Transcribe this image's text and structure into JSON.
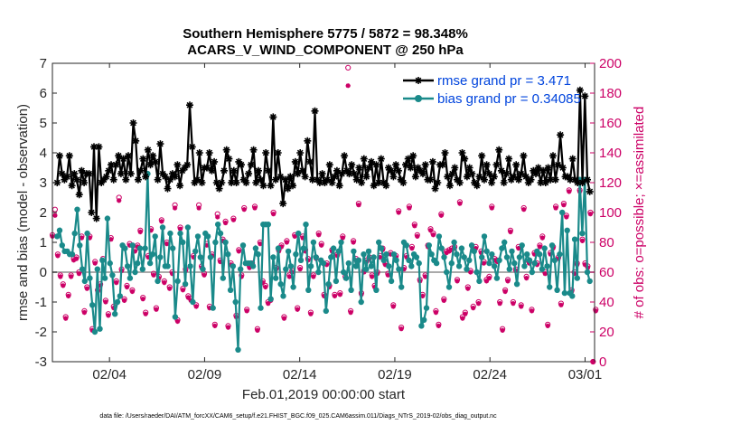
{
  "chart_data": {
    "type": "line",
    "title_line1": "Southern Hemisphere 5775 / 5872 = 98.348%",
    "title_line2": "ACARS_V_WIND_COMPONENT @ 250 hPa",
    "xlabel": "Feb.01,2019 00:00:00 start",
    "ylabel": "rmse and bias (model - observation)",
    "ylabel_right": "# of obs: o=possible; ×=assimilated",
    "footnote": "data file: /Users/raeder/DAI/ATM_forcXX/CAM6_setup/f.e21.FHIST_BGC.f09_025.CAM6assim.011/Diags_NTrS_2019-02/obs_diag_output.nc",
    "xlim": [
      0,
      28.5
    ],
    "ylim": [
      -3,
      7
    ],
    "ylim_right": [
      0,
      200
    ],
    "x_ticks": [
      {
        "value": 3,
        "label": "02/04"
      },
      {
        "value": 8,
        "label": "02/09"
      },
      {
        "value": 13,
        "label": "02/14"
      },
      {
        "value": 18,
        "label": "02/19"
      },
      {
        "value": 23,
        "label": "02/24"
      },
      {
        "value": 28,
        "label": "03/01"
      }
    ],
    "y_ticks": [
      "-3",
      "-2",
      "-1",
      "0",
      "1",
      "2",
      "3",
      "4",
      "5",
      "6",
      "7"
    ],
    "y_ticks_right": [
      "0",
      "20",
      "40",
      "60",
      "80",
      "100",
      "120",
      "140",
      "160",
      "180",
      "200"
    ],
    "step": 0.25,
    "series": [
      {
        "name": "rmse grand pr = 3.471",
        "color": "#000000",
        "marker": "asterisk",
        "values": [
          3.0,
          3.9,
          3.3,
          3.1,
          3.2,
          3.9,
          2.9,
          3.3,
          3.1,
          2.6,
          3.4,
          3.0,
          3.3,
          3.3,
          2.0,
          4.2,
          1.8,
          4.2,
          3.0,
          3.1,
          3.2,
          3.4,
          3.6,
          3.1,
          3.6,
          3.9,
          3.3,
          3.8,
          3.1,
          3.9,
          3.3,
          5.0,
          4.4,
          3.1,
          3.4,
          3.8,
          3.2,
          4.1,
          3.6,
          3.9,
          3.7,
          3.1,
          4.3,
          3.3,
          3.2,
          2.8,
          3.1,
          3.3,
          3.2,
          3.6,
          2.9,
          3.4,
          3.5,
          3.6,
          5.6,
          4.2,
          3.0,
          3.1,
          4.0,
          3.0,
          3.5,
          3.5,
          4.0,
          3.4,
          3.7,
          3.0,
          2.8,
          3.0,
          3.4,
          4.1,
          3.8,
          3.0,
          3.4,
          3.0,
          3.7,
          3.6,
          3.1,
          3.0,
          3.3,
          3.6,
          4.1,
          3.0,
          3.4,
          3.1,
          2.9,
          4.0,
          3.4,
          2.9,
          5.2,
          3.1,
          4.0,
          3.2,
          2.3,
          3.1,
          2.8,
          3.2,
          2.9,
          3.7,
          3.3,
          4.0,
          3.4,
          3.2,
          4.4,
          3.7,
          3.1,
          5.4,
          3.1,
          3.0,
          3.3,
          3.0,
          3.1,
          3.6,
          3.0,
          3.2,
          3.4,
          2.9,
          3.3,
          3.9,
          3.4,
          3.3,
          3.6,
          3.3,
          3.1,
          3.5,
          3.0,
          3.8,
          3.2,
          3.5,
          3.7,
          2.9,
          3.6,
          3.0,
          3.8,
          3.0,
          2.9,
          3.5,
          3.4,
          3.2,
          3.6,
          3.4,
          3.1,
          3.0,
          3.6,
          3.8,
          3.5,
          3.9,
          3.2,
          3.5,
          3.4,
          3.3,
          3.6,
          3.1,
          3.1,
          3.7,
          2.8,
          3.0,
          3.6,
          3.6,
          4.0,
          3.2,
          2.9,
          3.3,
          3.5,
          3.1,
          3.0,
          4.0,
          3.8,
          3.2,
          3.5,
          3.3,
          3.0,
          2.9,
          3.2,
          3.9,
          3.1,
          3.6,
          3.3,
          3.0,
          3.2,
          3.6,
          4.1,
          3.4,
          3.0,
          3.3,
          3.8,
          3.1,
          3.2,
          3.6,
          3.1,
          3.3,
          3.9,
          3.2,
          3.0,
          3.1,
          3.4,
          3.3,
          3.5,
          3.0,
          3.4,
          3.0,
          3.5,
          3.1,
          3.9,
          3.1,
          3.6,
          4.6,
          3.5,
          3.2,
          3.2,
          3.1,
          3.8,
          3.1,
          3.0,
          6.1,
          3.0,
          5.9,
          3.1,
          2.7
        ],
        "legend": "rmse grand pr = 3.471"
      },
      {
        "name": "bias grand pr = 0.34085",
        "color": "#1a8a8a",
        "marker": "circle",
        "values": [
          1.2,
          1.4,
          0.9,
          0.7,
          0.7,
          0.6,
          0.6,
          1.3,
          2.1,
          0.9,
          0.1,
          -0.3,
          1.3,
          -0.2,
          -1.1,
          -2.0,
          0.1,
          -1.9,
          0.4,
          -0.2,
          1.8,
          0.3,
          -0.1,
          -1.4,
          -1.0,
          -0.8,
          0.9,
          0.8,
          0.2,
          -0.2,
          0.9,
          0.0,
          0.3,
          0.8,
          0.1,
          0.8,
          3.3,
          0.3,
          0.6,
          1.2,
          -0.3,
          0.5,
          1.5,
          0.2,
          0.2,
          1.3,
          0.8,
          -1.5,
          -0.3,
          1.3,
          1.0,
          -0.4,
          1.5,
          0.2,
          -1.0,
          0.7,
          1.2,
          0.5,
          0.1,
          1.3,
          1.2,
          0.5,
          -1.2,
          1.0,
          1.6,
          1.3,
          -0.2,
          1.0,
          0.6,
          -0.6,
          0.2,
          -1.0,
          -2.6,
          0.1,
          0.9,
          0.3,
          0.3,
          0.3,
          0.2,
          0.8,
          0.6,
          -1.2,
          1.6,
          1.6,
          1.6,
          -0.9,
          0.5,
          -0.2,
          0.8,
          -0.4,
          -0.8,
          0.1,
          0.7,
          0.2,
          -0.5,
          0.6,
          1.3,
          0.4,
          0.8,
          1.6,
          -0.6,
          0.2,
          1.0,
          0.5,
          0.0,
          0.4,
          0.3,
          -1.3,
          -0.4,
          0.5,
          0.8,
          -0.3,
          0.7,
          1.0,
          0.0,
          -0.2,
          0.3,
          -0.6,
          0.7,
          0.2,
          0.4,
          -1.0,
          0.6,
          0.1,
          0.7,
          0.2,
          0.5,
          -0.6,
          1.0,
          0.8,
          0.4,
          0.6,
          0.2,
          -0.3,
          0.6,
          0.4,
          0.1,
          -0.5,
          1.0,
          0.9,
          0.4,
          0.2,
          0.6,
          0.5,
          0.3,
          -1.8,
          -1.6,
          -1.2,
          0.9,
          0.6,
          0.4,
          0.3,
          1.2,
          0.8,
          0.5,
          0.0,
          -0.5,
          0.3,
          1.0,
          0.6,
          0.2,
          0.8,
          0.5,
          0.1,
          0.4,
          0.9,
          0.7,
          0.0,
          -0.3,
          0.5,
          1.2,
          0.7,
          0.3,
          0.6,
          0.2,
          -0.2,
          0.4,
          0.8,
          1.0,
          0.5,
          0.1,
          0.7,
          0.3,
          -0.4,
          0.5,
          0.9,
          0.2,
          0.6,
          0.4,
          0.0,
          0.3,
          0.7,
          0.6,
          0.1,
          0.8,
          0.2,
          -0.5,
          0.9,
          0.4,
          -0.6,
          0.6,
          2.0,
          -0.7,
          1.4,
          -0.7,
          -0.8,
          1.1,
          -0.2,
          3.1,
          1.3,
          3.1,
          0.0,
          -0.3
        ],
        "legend": "bias grand pr = 0.34085"
      }
    ],
    "obs_possible": [
      85,
      102,
      72,
      58,
      52,
      30,
      45,
      58,
      69,
      70,
      60,
      84,
      34,
      50,
      84,
      22,
      67,
      48,
      52,
      69,
      41,
      32,
      83,
      37,
      54,
      110,
      62,
      42,
      51,
      79,
      48,
      75,
      78,
      88,
      43,
      33,
      71,
      89,
      59,
      36,
      57,
      95,
      54,
      80,
      50,
      60,
      105,
      28,
      90,
      49,
      62,
      44,
      42,
      71,
      38,
      105,
      64,
      59,
      79,
      37,
      72,
      25,
      99,
      68,
      82,
      94,
      24,
      66,
      96,
      31,
      75,
      58,
      103,
      35,
      64,
      66,
      104,
      22,
      80,
      54,
      51,
      40,
      42,
      100,
      63,
      75,
      78,
      30,
      81,
      58,
      61,
      85,
      36,
      63,
      84,
      75,
      69,
      33,
      58,
      70,
      86,
      79,
      45,
      66,
      51,
      75,
      45,
      72,
      46,
      84,
      57,
      197,
      34,
      81,
      69,
      106,
      46,
      61,
      68,
      70,
      58,
      51,
      60,
      71,
      76,
      66,
      59,
      73,
      38,
      71,
      101,
      23,
      63,
      71,
      104,
      77,
      92,
      85,
      55,
      45,
      58,
      78,
      89,
      86,
      34,
      25,
      99,
      42,
      74,
      75,
      76,
      77,
      55,
      107,
      30,
      33,
      50,
      61,
      37,
      77,
      40,
      74,
      67,
      55,
      57,
      104,
      69,
      68,
      40,
      22,
      48,
      55,
      88,
      40,
      62,
      77,
      38,
      103,
      57,
      67,
      35,
      73,
      66,
      78,
      84,
      60,
      25,
      73,
      77,
      104,
      70,
      39,
      106,
      98,
      115,
      48,
      60,
      66,
      115,
      82,
      66,
      64,
      100,
      0,
      35
    ],
    "obs_assimilated": [
      84,
      98,
      71,
      57,
      51,
      29,
      44,
      57,
      68,
      69,
      59,
      83,
      33,
      49,
      83,
      21,
      66,
      47,
      51,
      68,
      40,
      31,
      82,
      36,
      53,
      108,
      61,
      41,
      50,
      78,
      47,
      74,
      77,
      87,
      42,
      32,
      70,
      88,
      58,
      35,
      56,
      94,
      53,
      79,
      49,
      59,
      103,
      27,
      89,
      48,
      61,
      43,
      41,
      70,
      37,
      103,
      63,
      58,
      78,
      36,
      71,
      24,
      97,
      67,
      81,
      93,
      23,
      65,
      95,
      30,
      74,
      57,
      102,
      34,
      63,
      65,
      103,
      21,
      79,
      53,
      50,
      39,
      41,
      99,
      62,
      74,
      77,
      29,
      80,
      57,
      60,
      84,
      35,
      62,
      83,
      74,
      68,
      32,
      57,
      69,
      85,
      78,
      44,
      65,
      50,
      74,
      44,
      71,
      45,
      83,
      56,
      185,
      33,
      80,
      68,
      105,
      45,
      60,
      67,
      69,
      57,
      50,
      59,
      70,
      75,
      65,
      58,
      72,
      37,
      70,
      100,
      22,
      62,
      70,
      103,
      76,
      91,
      84,
      54,
      44,
      57,
      77,
      88,
      85,
      33,
      24,
      98,
      41,
      73,
      74,
      75,
      76,
      54,
      106,
      29,
      32,
      49,
      60,
      36,
      76,
      39,
      73,
      66,
      54,
      56,
      103,
      68,
      67,
      39,
      21,
      47,
      54,
      87,
      39,
      61,
      76,
      37,
      102,
      56,
      66,
      34,
      72,
      65,
      77,
      83,
      59,
      24,
      72,
      76,
      103,
      69,
      38,
      105,
      97,
      114,
      47,
      59,
      65,
      114,
      81,
      65,
      63,
      99,
      0,
      34
    ],
    "obs_color": "#cc0066",
    "zero_line_color": "#aaaaaa"
  }
}
